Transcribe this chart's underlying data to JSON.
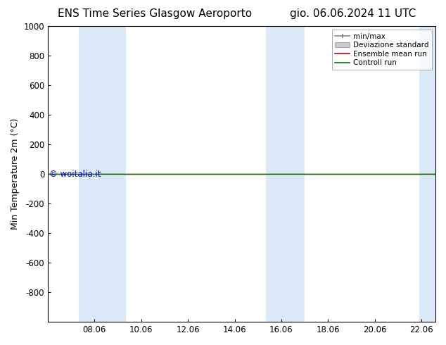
{
  "title_left": "ENS Time Series Glasgow Aeroporto",
  "title_right": "gio. 06.06.2024 11 UTC",
  "ylabel": "Min Temperature 2m (°C)",
  "xlabel": "",
  "ylim_top": -1000,
  "ylim_bottom": 1000,
  "yticks": [
    -800,
    -600,
    -400,
    -200,
    0,
    200,
    400,
    600,
    800,
    1000
  ],
  "xtick_labels": [
    "08.06",
    "10.06",
    "12.06",
    "14.06",
    "16.06",
    "18.06",
    "20.06",
    "22.06"
  ],
  "watermark": "© woitalia.it",
  "watermark_color": "#0000cc",
  "background_color": "#ffffff",
  "plot_bg_color": "#ffffff",
  "shaded_bands": [
    {
      "x_start": 7.33,
      "x_end": 9.33,
      "color": "#daeaf8"
    },
    {
      "x_start": 15.33,
      "x_end": 17.0,
      "color": "#daeaf8"
    },
    {
      "x_start": 21.9,
      "x_end": 22.6,
      "color": "#daeaf8"
    }
  ],
  "line_y": 0,
  "ensemble_mean_color": "#cc0000",
  "control_run_color": "#007700",
  "minmax_color": "#888888",
  "std_fill_color": "#cccccc",
  "legend_entries": [
    "min/max",
    "Deviazione standard",
    "Ensemble mean run",
    "Controll run"
  ],
  "title_fontsize": 11,
  "axis_fontsize": 9,
  "tick_fontsize": 8.5,
  "x_min": 6.0,
  "x_max": 22.6,
  "xtick_positions": [
    8,
    10,
    12,
    14,
    16,
    18,
    20,
    22
  ]
}
